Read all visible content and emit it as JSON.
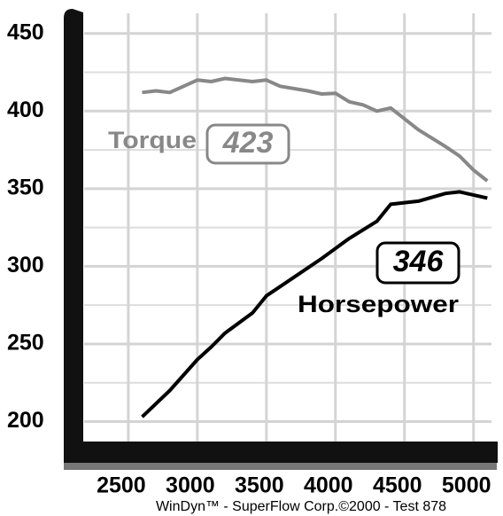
{
  "chart_data": {
    "type": "line",
    "x_torque": [
      2600,
      2700,
      2800,
      2900,
      3000,
      3100,
      3200,
      3400,
      3500,
      3600,
      3800,
      3900,
      4000,
      4100,
      4200,
      4300,
      4400,
      4600,
      4800,
      4900,
      5000,
      5100
    ],
    "x_hp": [
      2600,
      2800,
      3000,
      3100,
      3200,
      3400,
      3500,
      3700,
      3900,
      4100,
      4300,
      4400,
      4600,
      4800,
      4900,
      5000,
      5100
    ],
    "series": [
      {
        "name": "Torque",
        "color": "#888888",
        "peak": 423,
        "values": [
          412,
          413,
          412,
          416,
          420,
          419,
          421,
          419,
          420,
          416,
          413,
          411,
          411.5,
          406,
          404,
          400,
          402,
          388,
          377,
          371,
          362,
          355
        ]
      },
      {
        "name": "Horsepower",
        "color": "#000000",
        "peak": 346,
        "values": [
          203,
          220,
          240,
          248,
          257,
          270,
          281,
          293,
          305,
          318,
          329,
          340,
          342,
          347,
          348,
          346,
          344
        ]
      }
    ],
    "xlim": [
      2180,
      5130
    ],
    "xticks": [
      2500,
      3000,
      3500,
      4000,
      4500,
      5000
    ],
    "ylim": [
      186,
      463
    ],
    "yticks": [
      200,
      250,
      300,
      350,
      400,
      450
    ],
    "y_minor_ticks": [
      225,
      275,
      325,
      375,
      425
    ],
    "grid": true,
    "footer": "WinDyn™ - SuperFlow Corp.©2000 - Test 878"
  }
}
